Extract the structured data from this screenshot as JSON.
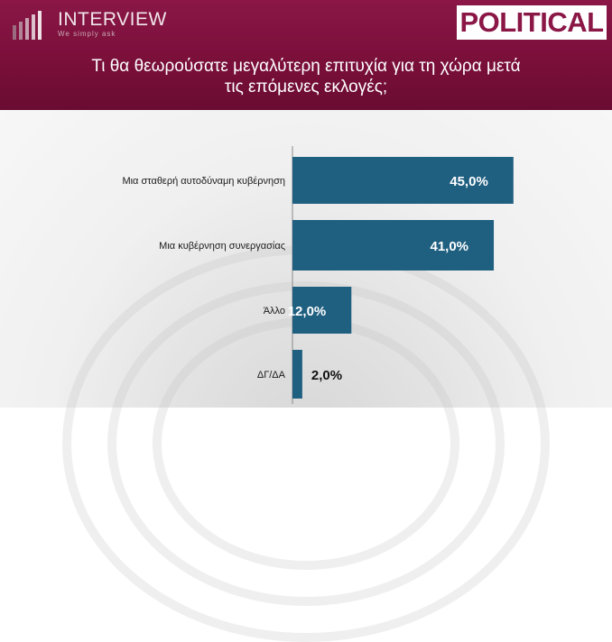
{
  "logo": {
    "name": "INTERVIEW",
    "tagline": "We simply ask"
  },
  "brand": "POLITICAL",
  "question_line1": "Τι θα θεωρούσατε μεγαλύτερη επιτυχία για τη χώρα μετά",
  "question_line2": "τις επόμενες εκλογές;",
  "chart_data": {
    "type": "bar",
    "orientation": "horizontal",
    "categories": [
      "Μια σταθερή αυτοδύναμη κυβέρνηση",
      "Μια κυβέρνηση συνεργασίας",
      "Άλλο",
      "ΔΓ/ΔΑ"
    ],
    "values": [
      45.0,
      41.0,
      12.0,
      2.0
    ],
    "value_labels": [
      "45,0%",
      "41,0%",
      "12,0%",
      "2,0%"
    ],
    "bar_color": "#1f5f80",
    "xlim": [
      0,
      50
    ],
    "grid": false,
    "legend": "none"
  }
}
